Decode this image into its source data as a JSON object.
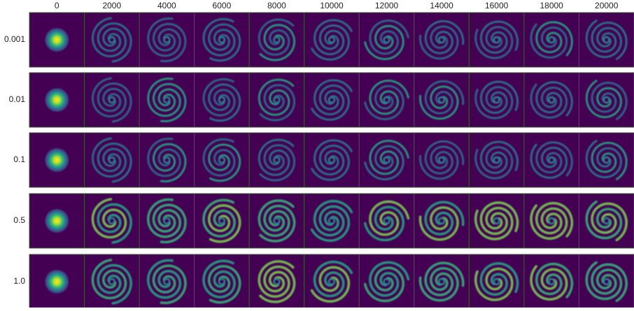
{
  "columns": [
    "0",
    "2000",
    "4000",
    "6000",
    "8000",
    "10000",
    "12000",
    "14000",
    "16000",
    "18000",
    "20000"
  ],
  "rows": [
    "0.001",
    "0.01",
    "0.1",
    "0.5",
    "1.0"
  ]
}
